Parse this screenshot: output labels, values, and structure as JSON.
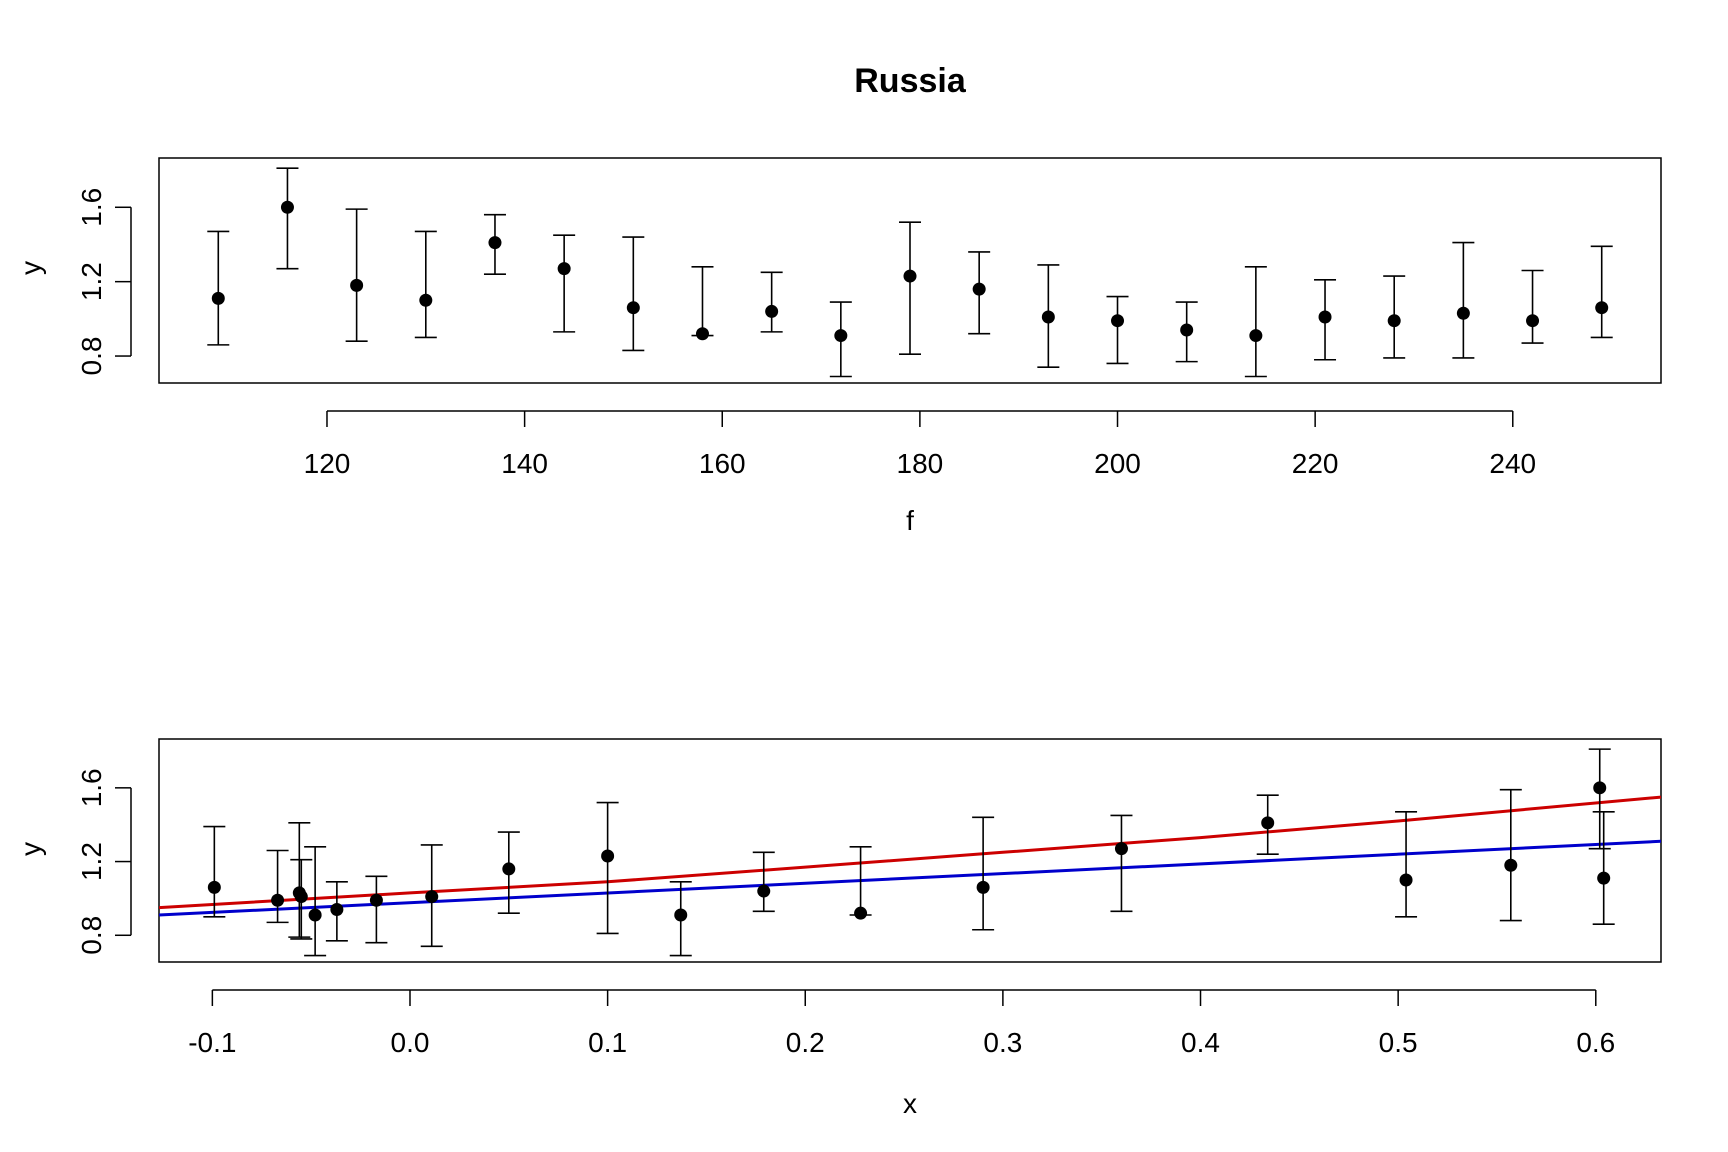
{
  "title": "Russia",
  "chart_data": [
    {
      "type": "scatter",
      "xlabel": "f",
      "ylabel": "y",
      "xlim": [
        103,
        255
      ],
      "ylim": [
        0.655,
        1.865
      ],
      "xticks": [
        120,
        140,
        160,
        180,
        200,
        220,
        240
      ],
      "xtick_labels": [
        "120",
        "140",
        "160",
        "180",
        "200",
        "220",
        "240"
      ],
      "yticks": [
        0.8,
        1.2,
        1.6
      ],
      "ytick_labels": [
        "0.8",
        "1.2",
        "1.6"
      ],
      "points": [
        {
          "x": 109,
          "y": 1.11,
          "lo": 0.86,
          "hi": 1.47
        },
        {
          "x": 116,
          "y": 1.6,
          "lo": 1.27,
          "hi": 1.81
        },
        {
          "x": 123,
          "y": 1.18,
          "lo": 0.88,
          "hi": 1.59
        },
        {
          "x": 130,
          "y": 1.1,
          "lo": 0.9,
          "hi": 1.47
        },
        {
          "x": 137,
          "y": 1.41,
          "lo": 1.24,
          "hi": 1.56
        },
        {
          "x": 144,
          "y": 1.27,
          "lo": 0.93,
          "hi": 1.45
        },
        {
          "x": 151,
          "y": 1.06,
          "lo": 0.83,
          "hi": 1.44
        },
        {
          "x": 158,
          "y": 0.92,
          "lo": 0.91,
          "hi": 1.28
        },
        {
          "x": 165,
          "y": 1.04,
          "lo": 0.93,
          "hi": 1.25
        },
        {
          "x": 172,
          "y": 0.91,
          "lo": 0.69,
          "hi": 1.09
        },
        {
          "x": 179,
          "y": 1.23,
          "lo": 0.81,
          "hi": 1.52
        },
        {
          "x": 186,
          "y": 1.16,
          "lo": 0.92,
          "hi": 1.36
        },
        {
          "x": 193,
          "y": 1.01,
          "lo": 0.74,
          "hi": 1.29
        },
        {
          "x": 200,
          "y": 0.99,
          "lo": 0.76,
          "hi": 1.12
        },
        {
          "x": 207,
          "y": 0.94,
          "lo": 0.77,
          "hi": 1.09
        },
        {
          "x": 214,
          "y": 0.91,
          "lo": 0.69,
          "hi": 1.28
        },
        {
          "x": 221,
          "y": 1.01,
          "lo": 0.78,
          "hi": 1.21
        },
        {
          "x": 228,
          "y": 0.99,
          "lo": 0.79,
          "hi": 1.23
        },
        {
          "x": 235,
          "y": 1.03,
          "lo": 0.79,
          "hi": 1.41
        },
        {
          "x": 242,
          "y": 0.99,
          "lo": 0.87,
          "hi": 1.26
        },
        {
          "x": 249,
          "y": 1.06,
          "lo": 0.9,
          "hi": 1.39
        }
      ]
    },
    {
      "type": "scatter",
      "xlabel": "x",
      "ylabel": "y",
      "xlim": [
        -0.127,
        0.633
      ],
      "ylim": [
        0.655,
        1.865
      ],
      "xticks": [
        -0.1,
        0.0,
        0.1,
        0.2,
        0.3,
        0.4,
        0.5,
        0.6
      ],
      "xtick_labels": [
        "-0.1",
        "0.0",
        "0.1",
        "0.2",
        "0.3",
        "0.4",
        "0.5",
        "0.6"
      ],
      "yticks": [
        0.8,
        1.2,
        1.6
      ],
      "ytick_labels": [
        "0.8",
        "1.2",
        "1.6"
      ],
      "points": [
        {
          "x": -0.099,
          "y": 1.06,
          "lo": 0.9,
          "hi": 1.39
        },
        {
          "x": -0.067,
          "y": 0.99,
          "lo": 0.87,
          "hi": 1.26
        },
        {
          "x": -0.056,
          "y": 1.03,
          "lo": 0.79,
          "hi": 1.41
        },
        {
          "x": -0.055,
          "y": 1.01,
          "lo": 0.78,
          "hi": 1.21
        },
        {
          "x": -0.048,
          "y": 0.91,
          "lo": 0.69,
          "hi": 1.28
        },
        {
          "x": -0.037,
          "y": 0.94,
          "lo": 0.77,
          "hi": 1.09
        },
        {
          "x": -0.017,
          "y": 0.99,
          "lo": 0.76,
          "hi": 1.12
        },
        {
          "x": 0.011,
          "y": 1.01,
          "lo": 0.74,
          "hi": 1.29
        },
        {
          "x": 0.05,
          "y": 1.16,
          "lo": 0.92,
          "hi": 1.36
        },
        {
          "x": 0.1,
          "y": 1.23,
          "lo": 0.81,
          "hi": 1.52
        },
        {
          "x": 0.137,
          "y": 0.91,
          "lo": 0.69,
          "hi": 1.09
        },
        {
          "x": 0.179,
          "y": 1.04,
          "lo": 0.93,
          "hi": 1.25
        },
        {
          "x": 0.228,
          "y": 0.92,
          "lo": 0.91,
          "hi": 1.28
        },
        {
          "x": 0.29,
          "y": 1.06,
          "lo": 0.83,
          "hi": 1.44
        },
        {
          "x": 0.36,
          "y": 1.27,
          "lo": 0.93,
          "hi": 1.45
        },
        {
          "x": 0.434,
          "y": 1.41,
          "lo": 1.24,
          "hi": 1.56
        },
        {
          "x": 0.504,
          "y": 1.1,
          "lo": 0.9,
          "hi": 1.47
        },
        {
          "x": 0.557,
          "y": 1.18,
          "lo": 0.88,
          "hi": 1.59
        },
        {
          "x": 0.602,
          "y": 1.6,
          "lo": 1.27,
          "hi": 1.81
        },
        {
          "x": 0.604,
          "y": 1.11,
          "lo": 0.86,
          "hi": 1.47
        }
      ],
      "lines": [
        {
          "color": "#cc0000",
          "x": [
            -0.127,
            0.0,
            0.1,
            0.2,
            0.3,
            0.4,
            0.5,
            0.633
          ],
          "y": [
            0.95,
            1.03,
            1.09,
            1.17,
            1.25,
            1.33,
            1.42,
            1.55
          ]
        },
        {
          "color": "#0000cc",
          "x": [
            -0.127,
            0.633
          ],
          "y": [
            0.91,
            1.31
          ]
        }
      ]
    }
  ]
}
